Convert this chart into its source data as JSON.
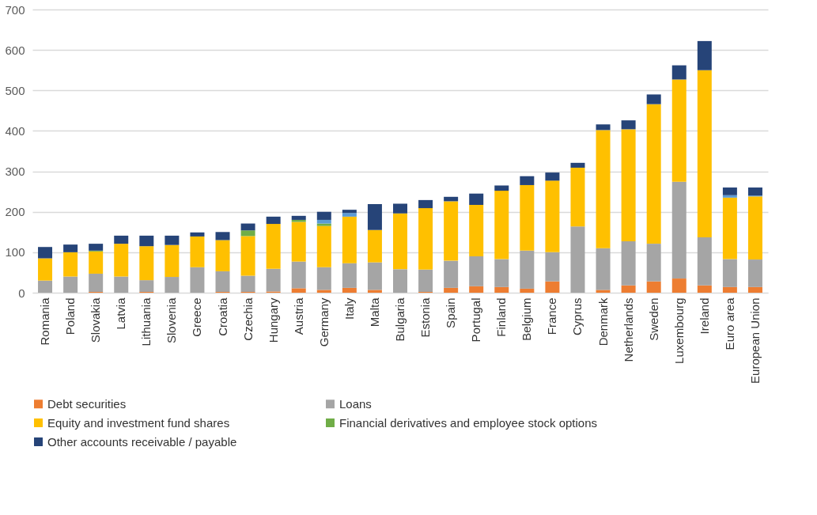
{
  "chart_data": {
    "type": "bar",
    "stacked": true,
    "categories": [
      "Romania",
      "Poland",
      "Slovakia",
      "Latvia",
      "Lithuania",
      "Slovenia",
      "Greece",
      "Croatia",
      "Czechia",
      "Hungary",
      "Austria",
      "Germany",
      "Italy",
      "Malta",
      "Bulgaria",
      "Estonia",
      "Spain",
      "Portugal",
      "Finland",
      "Belgium",
      "France",
      "Cyprus",
      "Denmark",
      "Netherlands",
      "Sweden",
      "Luxembourg",
      "Ireland",
      "Euro area",
      "European Union"
    ],
    "series": [
      {
        "name": "Debt securities",
        "color": "#ed7d31",
        "values": [
          0,
          0,
          2,
          0,
          2,
          0,
          0,
          2,
          2,
          3,
          11,
          7,
          12,
          7,
          0,
          2,
          12,
          16,
          14,
          10,
          28,
          0,
          7,
          18,
          28,
          35,
          18,
          14,
          14
        ]
      },
      {
        "name": "Loans",
        "color": "#a5a5a5",
        "values": [
          30,
          40,
          45,
          40,
          29,
          39,
          63,
          51,
          40,
          56,
          66,
          56,
          61,
          68,
          58,
          55,
          67,
          74,
          69,
          94,
          72,
          164,
          103,
          109,
          93,
          239,
          119,
          69,
          68
        ]
      },
      {
        "name": "Equity and investment fund shares",
        "color": "#ffc000",
        "values": [
          55,
          60,
          55,
          81,
          84,
          79,
          76,
          77,
          98,
          111,
          98,
          102,
          115,
          80,
          138,
          152,
          147,
          127,
          169,
          162,
          177,
          145,
          292,
          277,
          345,
          253,
          413,
          152,
          156
        ]
      },
      {
        "name": "Financial derivatives and employee stock options",
        "color": "#70ad47",
        "values": [
          0,
          0,
          2,
          0,
          0,
          0,
          0,
          0,
          14,
          0,
          5,
          6,
          0,
          0,
          0,
          0,
          0,
          0,
          0,
          0,
          0,
          0,
          0,
          0,
          0,
          0,
          0,
          0,
          0
        ]
      },
      {
        "color": "#5b9bd5",
        "values": [
          0,
          0,
          0,
          0,
          0,
          0,
          0,
          0,
          0,
          0,
          0,
          9,
          9,
          0,
          0,
          0,
          0,
          0,
          0,
          0,
          0,
          0,
          0,
          0,
          0,
          0,
          0,
          6,
          2
        ]
      },
      {
        "name": "Other accounts receivable / payable",
        "color": "#264478",
        "values": [
          28,
          19,
          17,
          20,
          26,
          23,
          10,
          20,
          17,
          18,
          10,
          20,
          8,
          64,
          24,
          20,
          11,
          28,
          13,
          22,
          20,
          12,
          14,
          22,
          24,
          35,
          72,
          19,
          20
        ]
      }
    ],
    "ylim": [
      0,
      700
    ],
    "yticks": [
      0,
      100,
      200,
      300,
      400,
      500,
      600,
      700
    ],
    "grid": "y",
    "legend": "bottom"
  }
}
